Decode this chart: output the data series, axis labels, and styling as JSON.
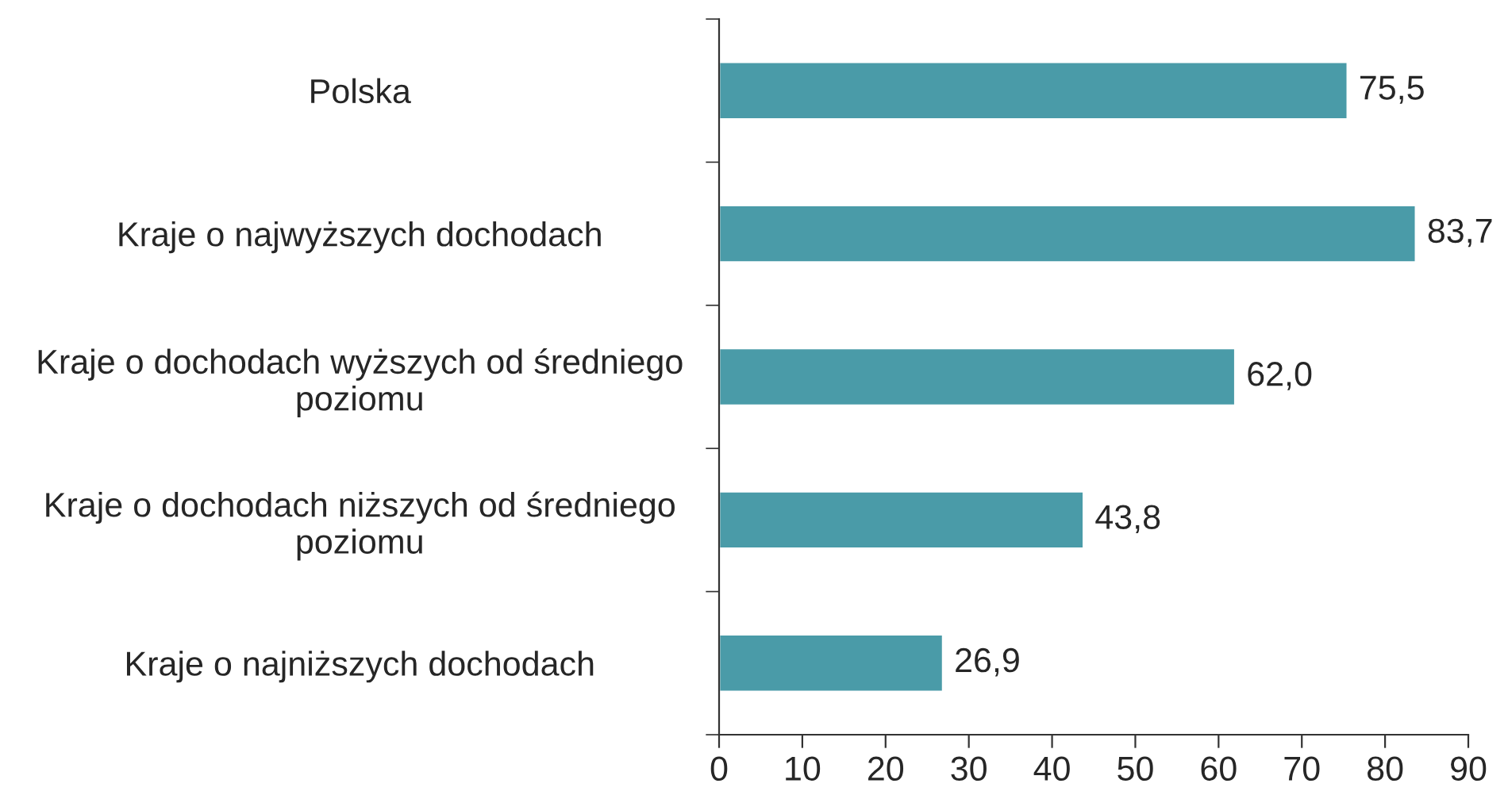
{
  "chart_data": {
    "type": "bar",
    "orientation": "horizontal",
    "categories": [
      "Polska",
      "Kraje o najwyższych dochodach",
      "Kraje o dochodach wyższych od średniego\npoziomu",
      "Kraje o dochodach niższych od średniego\npoziomu",
      "Kraje o najniższych dochodach"
    ],
    "values": [
      75.5,
      83.7,
      62.0,
      43.8,
      26.9
    ],
    "value_labels": [
      "75,5",
      "83,7",
      "62,0",
      "43,8",
      "26,9"
    ],
    "color": "#4a9ba8",
    "xlim": [
      0,
      90
    ],
    "xticks": [
      0,
      10,
      20,
      30,
      40,
      50,
      60,
      70,
      80,
      90
    ],
    "grid": false,
    "legend": false
  }
}
